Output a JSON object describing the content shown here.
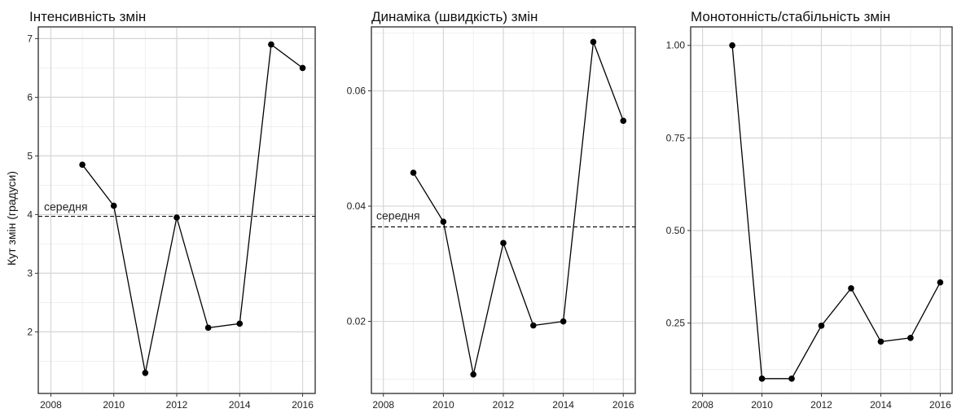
{
  "figure": {
    "ylabel": "Кут змін (градуси)",
    "mean_label": "середня"
  },
  "chart_data": [
    {
      "type": "line",
      "title": "Інтенсивність змін",
      "xlabel": "",
      "ylabel": "Кут змін (градуси)",
      "x": [
        2009,
        2010,
        2011,
        2012,
        2013,
        2014,
        2015,
        2016
      ],
      "series": [
        {
          "values": [
            4.85,
            4.15,
            1.3,
            3.95,
            2.07,
            2.14,
            6.9,
            6.5
          ]
        }
      ],
      "mean": 3.97,
      "xlim": [
        2007.6,
        2016.4
      ],
      "ylim": [
        0.95,
        7.2
      ],
      "xticks": [
        2008,
        2010,
        2012,
        2014,
        2016
      ],
      "yticks": [
        2,
        3,
        4,
        5,
        6,
        7
      ],
      "ytick_labels": [
        "2",
        "3",
        "4",
        "5",
        "6",
        "7"
      ],
      "grid": true,
      "legend": "none"
    },
    {
      "type": "line",
      "title": "Динаміка (швидкість) змін",
      "xlabel": "",
      "ylabel": "",
      "x": [
        2009,
        2010,
        2011,
        2012,
        2013,
        2014,
        2015,
        2016
      ],
      "series": [
        {
          "values": [
            0.0458,
            0.0373,
            0.0108,
            0.0336,
            0.0193,
            0.02,
            0.0685,
            0.0548
          ]
        }
      ],
      "mean": 0.0364,
      "xlim": [
        2007.6,
        2016.4
      ],
      "ylim": [
        0.0075,
        0.0711
      ],
      "xticks": [
        2008,
        2010,
        2012,
        2014,
        2016
      ],
      "yticks": [
        0.02,
        0.04,
        0.06
      ],
      "ytick_labels": [
        "0.02",
        "0.04",
        "0.06"
      ],
      "grid": true,
      "legend": "none"
    },
    {
      "type": "line",
      "title": "Монотонність/стабільність  змін",
      "xlabel": "",
      "ylabel": "",
      "x": [
        2009,
        2010,
        2011,
        2012,
        2013,
        2014,
        2015,
        2016
      ],
      "series": [
        {
          "values": [
            1.0,
            0.1,
            0.1,
            0.243,
            0.344,
            0.2,
            0.21,
            0.36
          ]
        }
      ],
      "xlim": [
        2007.6,
        2016.4
      ],
      "ylim": [
        0.06,
        1.05
      ],
      "xticks": [
        2008,
        2010,
        2012,
        2014,
        2016
      ],
      "yticks": [
        0.25,
        0.5,
        0.75,
        1.0
      ],
      "ytick_labels": [
        "0.25",
        "0.50",
        "0.75",
        "1.00"
      ],
      "grid": true,
      "legend": "none"
    }
  ]
}
